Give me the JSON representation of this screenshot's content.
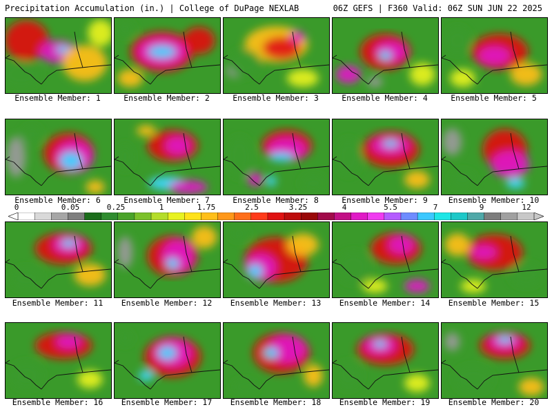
{
  "header": {
    "left_title": "Precipitation Accumulation (in.) | College of DuPage NEXLAB",
    "right_title": "06Z GEFS | F360 Valid: 06Z SUN JUN 22 2025"
  },
  "members": [
    {
      "label": "Ensemble Member: 1",
      "blobs": [
        [
          0.2,
          0.3,
          0.35,
          0.45,
          "red"
        ],
        [
          0.5,
          0.45,
          0.3,
          0.25,
          "magenta"
        ],
        [
          0.55,
          0.42,
          0.12,
          0.08,
          "cyan"
        ],
        [
          0.75,
          0.6,
          0.35,
          0.4,
          "orange"
        ],
        [
          0.15,
          0.75,
          0.3,
          0.3,
          "green"
        ],
        [
          0.9,
          0.2,
          0.2,
          0.3,
          "yellow"
        ]
      ]
    },
    {
      "label": "Ensemble Member: 2",
      "blobs": [
        [
          0.45,
          0.45,
          0.5,
          0.45,
          "red"
        ],
        [
          0.45,
          0.45,
          0.38,
          0.3,
          "magenta"
        ],
        [
          0.45,
          0.45,
          0.22,
          0.14,
          "cyan"
        ],
        [
          0.8,
          0.3,
          0.25,
          0.3,
          "red"
        ],
        [
          0.15,
          0.8,
          0.2,
          0.2,
          "orange"
        ],
        [
          0.1,
          0.15,
          0.15,
          0.15,
          "green"
        ]
      ]
    },
    {
      "label": "Ensemble Member: 3",
      "blobs": [
        [
          0.5,
          0.35,
          0.5,
          0.4,
          "orange"
        ],
        [
          0.55,
          0.4,
          0.3,
          0.25,
          "red"
        ],
        [
          0.7,
          0.25,
          0.12,
          0.12,
          "magenta"
        ],
        [
          0.1,
          0.7,
          0.12,
          0.15,
          "gray"
        ],
        [
          0.2,
          0.6,
          0.25,
          0.3,
          "green"
        ],
        [
          0.75,
          0.8,
          0.25,
          0.2,
          "yellow"
        ]
      ]
    },
    {
      "label": "Ensemble Member: 4",
      "blobs": [
        [
          0.5,
          0.45,
          0.4,
          0.4,
          "red"
        ],
        [
          0.55,
          0.45,
          0.25,
          0.22,
          "magenta"
        ],
        [
          0.5,
          0.5,
          0.1,
          0.1,
          "cyan"
        ],
        [
          0.15,
          0.75,
          0.2,
          0.2,
          "magenta"
        ],
        [
          0.4,
          0.85,
          0.12,
          0.12,
          "gray"
        ],
        [
          0.85,
          0.75,
          0.2,
          0.25,
          "yellow"
        ]
      ]
    },
    {
      "label": "Ensemble Member: 5",
      "blobs": [
        [
          0.55,
          0.45,
          0.45,
          0.4,
          "red"
        ],
        [
          0.5,
          0.5,
          0.25,
          0.2,
          "magenta"
        ],
        [
          0.15,
          0.3,
          0.2,
          0.3,
          "green"
        ],
        [
          0.8,
          0.75,
          0.25,
          0.25,
          "orange"
        ],
        [
          0.2,
          0.8,
          0.2,
          0.2,
          "yellow"
        ]
      ]
    },
    {
      "label": "Ensemble Member: 6",
      "blobs": [
        [
          0.1,
          0.5,
          0.15,
          0.45,
          "gray"
        ],
        [
          0.6,
          0.45,
          0.4,
          0.45,
          "red"
        ],
        [
          0.65,
          0.5,
          0.3,
          0.35,
          "magenta"
        ],
        [
          0.62,
          0.55,
          0.18,
          0.2,
          "cyan"
        ],
        [
          0.85,
          0.9,
          0.15,
          0.15,
          "orange"
        ],
        [
          0.25,
          0.2,
          0.15,
          0.2,
          "green"
        ]
      ]
    },
    {
      "label": "Ensemble Member: 7",
      "blobs": [
        [
          0.55,
          0.35,
          0.4,
          0.35,
          "red"
        ],
        [
          0.6,
          0.35,
          0.2,
          0.2,
          "magenta"
        ],
        [
          0.5,
          0.85,
          0.3,
          0.15,
          "cyan"
        ],
        [
          0.7,
          0.9,
          0.3,
          0.15,
          "magenta"
        ],
        [
          0.1,
          0.5,
          0.12,
          0.3,
          "green"
        ],
        [
          0.3,
          0.15,
          0.15,
          0.12,
          "orange"
        ]
      ]
    },
    {
      "label": "Ensemble Member: 8",
      "blobs": [
        [
          0.15,
          0.5,
          0.2,
          0.45,
          "green"
        ],
        [
          0.6,
          0.35,
          0.4,
          0.35,
          "red"
        ],
        [
          0.6,
          0.4,
          0.3,
          0.25,
          "magenta"
        ],
        [
          0.55,
          0.5,
          0.2,
          0.1,
          "cyan"
        ],
        [
          0.3,
          0.8,
          0.12,
          0.15,
          "magenta"
        ],
        [
          0.45,
          0.82,
          0.08,
          0.12,
          "cyan"
        ],
        [
          0.85,
          0.85,
          0.2,
          0.2,
          "green"
        ]
      ]
    },
    {
      "label": "Ensemble Member: 9",
      "blobs": [
        [
          0.55,
          0.4,
          0.45,
          0.4,
          "red"
        ],
        [
          0.55,
          0.35,
          0.3,
          0.2,
          "magenta"
        ],
        [
          0.55,
          0.32,
          0.12,
          0.08,
          "cyan"
        ],
        [
          0.15,
          0.5,
          0.2,
          0.4,
          "green"
        ],
        [
          0.8,
          0.8,
          0.2,
          0.2,
          "orange"
        ]
      ]
    },
    {
      "label": "Ensemble Member: 10",
      "blobs": [
        [
          0.1,
          0.3,
          0.15,
          0.3,
          "gray"
        ],
        [
          0.6,
          0.4,
          0.35,
          0.45,
          "red"
        ],
        [
          0.65,
          0.6,
          0.3,
          0.3,
          "magenta"
        ],
        [
          0.7,
          0.85,
          0.15,
          0.12,
          "cyan"
        ],
        [
          0.2,
          0.8,
          0.2,
          0.2,
          "green"
        ]
      ]
    },
    {
      "label": "Ensemble Member: 11",
      "blobs": [
        [
          0.55,
          0.35,
          0.45,
          0.35,
          "red"
        ],
        [
          0.6,
          0.3,
          0.25,
          0.2,
          "magenta"
        ],
        [
          0.6,
          0.28,
          0.12,
          0.08,
          "cyan"
        ],
        [
          0.2,
          0.75,
          0.25,
          0.25,
          "green"
        ],
        [
          0.8,
          0.7,
          0.25,
          0.25,
          "orange"
        ]
      ]
    },
    {
      "label": "Ensemble Member: 12",
      "blobs": [
        [
          0.1,
          0.4,
          0.12,
          0.35,
          "gray"
        ],
        [
          0.55,
          0.45,
          0.4,
          0.45,
          "red"
        ],
        [
          0.6,
          0.45,
          0.25,
          0.35,
          "magenta"
        ],
        [
          0.55,
          0.55,
          0.1,
          0.12,
          "cyan"
        ],
        [
          0.85,
          0.2,
          0.2,
          0.25,
          "orange"
        ]
      ]
    },
    {
      "label": "Ensemble Member: 13",
      "blobs": [
        [
          0.5,
          0.5,
          0.5,
          0.5,
          "red"
        ],
        [
          0.35,
          0.6,
          0.25,
          0.3,
          "magenta"
        ],
        [
          0.3,
          0.65,
          0.12,
          0.15,
          "cyan"
        ],
        [
          0.15,
          0.15,
          0.15,
          0.15,
          "green"
        ],
        [
          0.75,
          0.3,
          0.25,
          0.25,
          "orange"
        ]
      ]
    },
    {
      "label": "Ensemble Member: 14",
      "blobs": [
        [
          0.6,
          0.35,
          0.4,
          0.35,
          "red"
        ],
        [
          0.65,
          0.3,
          0.2,
          0.2,
          "magenta"
        ],
        [
          0.2,
          0.6,
          0.25,
          0.35,
          "green"
        ],
        [
          0.8,
          0.85,
          0.2,
          0.15,
          "magenta"
        ],
        [
          0.4,
          0.85,
          0.2,
          0.15,
          "yellow"
        ]
      ]
    },
    {
      "label": "Ensemble Member: 15",
      "blobs": [
        [
          0.5,
          0.4,
          0.45,
          0.4,
          "red"
        ],
        [
          0.4,
          0.4,
          0.2,
          0.15,
          "magenta"
        ],
        [
          0.15,
          0.3,
          0.2,
          0.25,
          "orange"
        ],
        [
          0.8,
          0.7,
          0.25,
          0.25,
          "green"
        ],
        [
          0.3,
          0.85,
          0.2,
          0.15,
          "yellow"
        ]
      ]
    },
    {
      "label": "Ensemble Member: 16",
      "blobs": [
        [
          0.55,
          0.3,
          0.45,
          0.3,
          "red"
        ],
        [
          0.6,
          0.25,
          0.2,
          0.15,
          "magenta"
        ],
        [
          0.2,
          0.7,
          0.25,
          0.3,
          "green"
        ],
        [
          0.8,
          0.75,
          0.2,
          0.2,
          "yellow"
        ]
      ]
    },
    {
      "label": "Ensemble Member: 17",
      "blobs": [
        [
          0.55,
          0.45,
          0.45,
          0.45,
          "red"
        ],
        [
          0.55,
          0.4,
          0.3,
          0.3,
          "magenta"
        ],
        [
          0.5,
          0.4,
          0.15,
          0.15,
          "cyan"
        ],
        [
          0.3,
          0.7,
          0.12,
          0.12,
          "cyan"
        ],
        [
          0.1,
          0.2,
          0.12,
          0.15,
          "green"
        ]
      ]
    },
    {
      "label": "Ensemble Member: 18",
      "blobs": [
        [
          0.55,
          0.4,
          0.45,
          0.45,
          "red"
        ],
        [
          0.6,
          0.35,
          0.3,
          0.3,
          "magenta"
        ],
        [
          0.45,
          0.4,
          0.12,
          0.12,
          "cyan"
        ],
        [
          0.2,
          0.85,
          0.2,
          0.15,
          "green"
        ],
        [
          0.85,
          0.7,
          0.15,
          0.25,
          "orange"
        ]
      ]
    },
    {
      "label": "Ensemble Member: 19",
      "blobs": [
        [
          0.5,
          0.35,
          0.45,
          0.35,
          "red"
        ],
        [
          0.45,
          0.3,
          0.25,
          0.2,
          "magenta"
        ],
        [
          0.45,
          0.28,
          0.1,
          0.08,
          "cyan"
        ],
        [
          0.15,
          0.7,
          0.2,
          0.3,
          "green"
        ],
        [
          0.8,
          0.8,
          0.2,
          0.2,
          "yellow"
        ]
      ]
    },
    {
      "label": "Ensemble Member: 20",
      "blobs": [
        [
          0.1,
          0.25,
          0.12,
          0.2,
          "gray"
        ],
        [
          0.6,
          0.3,
          0.4,
          0.3,
          "red"
        ],
        [
          0.6,
          0.25,
          0.25,
          0.18,
          "magenta"
        ],
        [
          0.6,
          0.22,
          0.12,
          0.08,
          "cyan"
        ],
        [
          0.3,
          0.75,
          0.3,
          0.3,
          "green"
        ],
        [
          0.85,
          0.85,
          0.2,
          0.2,
          "orange"
        ]
      ]
    }
  ],
  "colorbar": {
    "labels": [
      "0",
      "0.05",
      "0.25",
      "1",
      "1.75",
      "2.5",
      "3.25",
      "4",
      "5.5",
      "7",
      "9",
      "12"
    ],
    "colors": [
      "#ffffff",
      "#d9d9d9",
      "#a6a6a6",
      "#7f7f7f",
      "#1c6e1c",
      "#2f8c2f",
      "#4aa32a",
      "#7cc12b",
      "#b4dd2a",
      "#e8f221",
      "#ffe21a",
      "#ffbf1a",
      "#ff981a",
      "#ff6e1a",
      "#ff3b1a",
      "#e01212",
      "#bd0c0c",
      "#990808",
      "#a10a4a",
      "#c20f85",
      "#e01ac6",
      "#f03cf0",
      "#b45cff",
      "#6e8cff",
      "#3cc8ff",
      "#1ee6e6",
      "#1ec8c8",
      "#50a8a8",
      "#7d7d7d",
      "#a0a0a0",
      "#c8c8c8"
    ]
  },
  "map_colors": {
    "green": "#3a9a2a",
    "yellow": "#e8f221",
    "orange": "#ffbf1a",
    "red": "#e01212",
    "magenta": "#e01ac6",
    "cyan": "#3cd8ff",
    "gray": "#9a9a9a"
  }
}
